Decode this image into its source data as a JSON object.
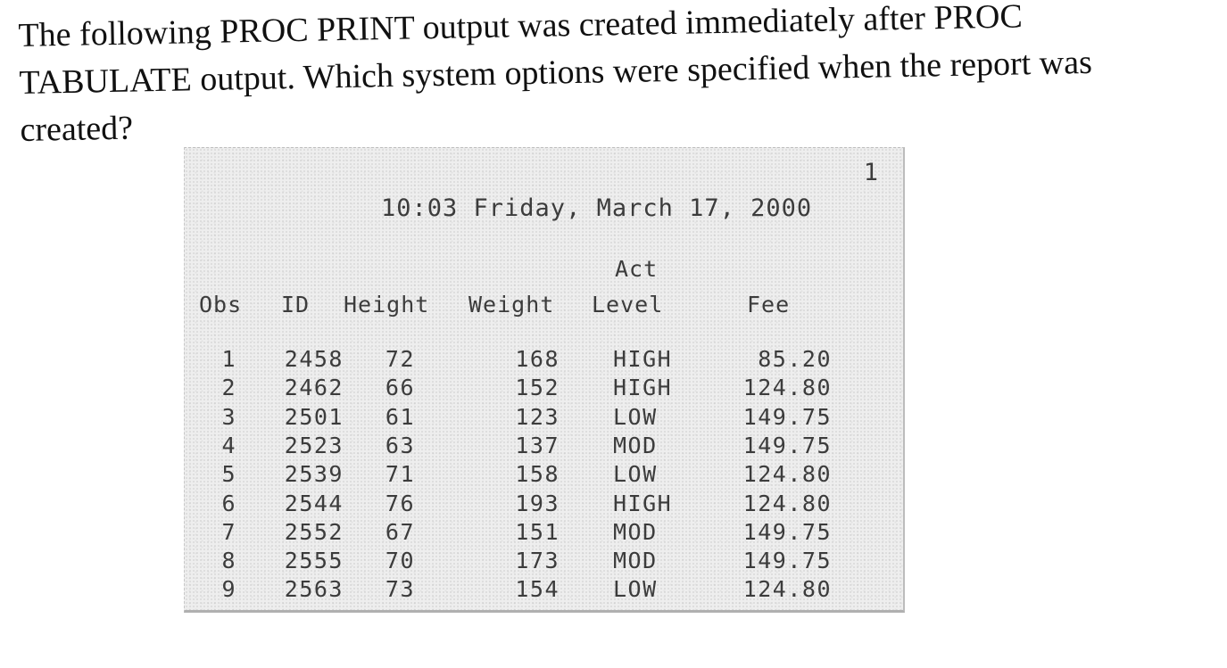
{
  "question": {
    "line1": "The following PROC PRINT output was created immediately after PROC",
    "line2": "TABULATE output. Which system options were specified when the report was",
    "line3": "created?"
  },
  "report": {
    "page_number": "1",
    "timestamp": "10:03 Friday, March 17, 2000",
    "headers": {
      "obs": "Obs",
      "id": "ID",
      "height": "Height",
      "weight": "Weight",
      "act_top": "Act",
      "act_bottom": "Level",
      "fee": "Fee"
    },
    "rows": [
      {
        "obs": "1",
        "id": "2458",
        "height": "72",
        "weight": "168",
        "act": "HIGH",
        "fee": "85.20"
      },
      {
        "obs": "2",
        "id": "2462",
        "height": "66",
        "weight": "152",
        "act": "HIGH",
        "fee": "124.80"
      },
      {
        "obs": "3",
        "id": "2501",
        "height": "61",
        "weight": "123",
        "act": "LOW",
        "fee": "149.75"
      },
      {
        "obs": "4",
        "id": "2523",
        "height": "63",
        "weight": "137",
        "act": "MOD",
        "fee": "149.75"
      },
      {
        "obs": "5",
        "id": "2539",
        "height": "71",
        "weight": "158",
        "act": "LOW",
        "fee": "124.80"
      },
      {
        "obs": "6",
        "id": "2544",
        "height": "76",
        "weight": "193",
        "act": "HIGH",
        "fee": "124.80"
      },
      {
        "obs": "7",
        "id": "2552",
        "height": "67",
        "weight": "151",
        "act": "MOD",
        "fee": "149.75"
      },
      {
        "obs": "8",
        "id": "2555",
        "height": "70",
        "weight": "173",
        "act": "MOD",
        "fee": "149.75"
      },
      {
        "obs": "9",
        "id": "2563",
        "height": "73",
        "weight": "154",
        "act": "LOW",
        "fee": "124.80"
      }
    ]
  }
}
